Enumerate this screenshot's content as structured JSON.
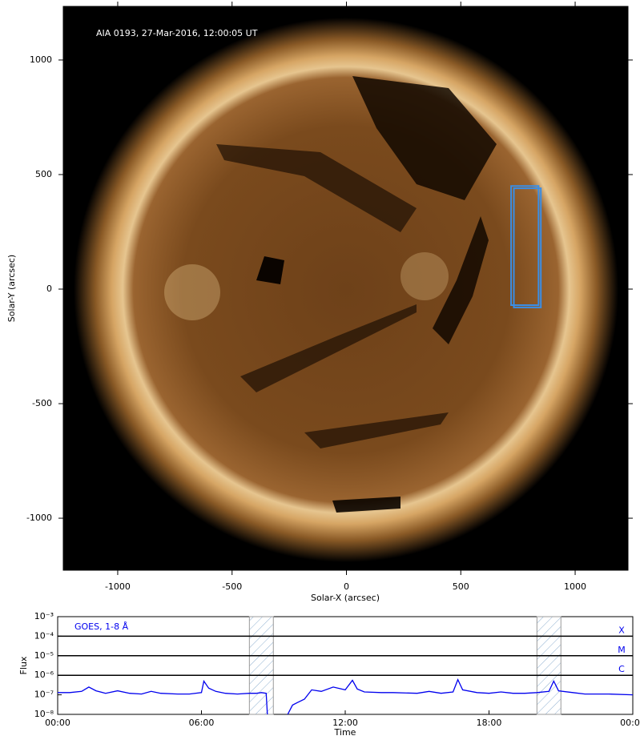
{
  "chart_data": [
    {
      "type": "image",
      "annotation": "AIA 0193, 27-Mar-2016, 12:00:05 UT",
      "x_label": "Solar-X (arcsec)",
      "y_label": "Solar-Y (arcsec)",
      "xlim": [
        -1238,
        1231
      ],
      "ylim": [
        -1227,
        1234
      ],
      "xticks": [
        {
          "value": -1000,
          "label": "-1000"
        },
        {
          "value": -500,
          "label": "-500"
        },
        0,
        500,
        1000
      ],
      "yticks": [
        {
          "value": -1000,
          "label": "-1000"
        },
        {
          "value": -500,
          "label": "-500"
        },
        0,
        500,
        1000
      ],
      "boxes": [
        {
          "x": [
            720,
            840
          ],
          "y": [
            -70,
            450
          ],
          "color": "#3a8ee6"
        },
        {
          "x": [
            732,
            850
          ],
          "y": [
            -80,
            440
          ],
          "color": "#3a8ee6"
        }
      ]
    },
    {
      "type": "line",
      "annotation": "GOES, 1-8 Å",
      "x_label": "Time",
      "y_label": "Flux",
      "log_y": true,
      "xlim": [
        0,
        24
      ],
      "ylim": [
        1e-08,
        0.001
      ],
      "xticks": [
        {
          "value": 0,
          "label": "00:00"
        },
        {
          "value": 6,
          "label": "06:00"
        },
        {
          "value": 12,
          "label": "12:00"
        },
        {
          "value": 18,
          "label": "18:00"
        },
        {
          "value": 24,
          "label": "00:00"
        }
      ],
      "yticks": [
        {
          "value": 1e-08,
          "label": "10⁻⁸"
        },
        {
          "value": 1e-07,
          "label": "10⁻⁷"
        },
        {
          "value": 1e-06,
          "label": "10⁻⁶"
        },
        {
          "value": 1e-05,
          "label": "10⁻⁵"
        },
        {
          "value": 0.0001,
          "label": "10⁻⁴"
        },
        {
          "value": 0.001,
          "label": "10⁻³"
        }
      ],
      "levels": [
        {
          "value": 0.0001,
          "label": "X"
        },
        {
          "value": 1e-05,
          "label": "M"
        },
        {
          "value": 1e-06,
          "label": "C"
        }
      ],
      "regions": [
        [
          8.0,
          9.0
        ],
        [
          20.0,
          21.0
        ]
      ],
      "x": [
        0,
        0.5,
        1,
        1.3,
        1.6,
        2,
        2.5,
        3,
        3.5,
        3.9,
        4.3,
        5,
        5.5,
        6,
        6.1,
        6.3,
        6.6,
        7,
        7.5,
        8,
        8.3,
        8.5,
        8.7,
        8.75,
        9.2,
        9.6,
        9.8,
        10,
        10.3,
        10.6,
        11,
        11.5,
        12,
        12.3,
        12.5,
        12.8,
        13.5,
        14,
        15,
        15.5,
        16,
        16.5,
        16.7,
        16.9,
        17.5,
        18,
        18.5,
        19,
        19.5,
        20,
        20.5,
        20.7,
        20.9,
        21.5,
        22,
        23,
        24
      ],
      "series": [
        {
          "name": "GOES 1-8 Å",
          "color": "#0000ee",
          "values": [
            1.3e-07,
            1.3e-07,
            1.5e-07,
            2.5e-07,
            1.6e-07,
            1.2e-07,
            1.6e-07,
            1.2e-07,
            1.1e-07,
            1.5e-07,
            1.2e-07,
            1.1e-07,
            1.1e-07,
            1.3e-07,
            5e-07,
            2.2e-07,
            1.5e-07,
            1.2e-07,
            1.1e-07,
            1.2e-07,
            1.2e-07,
            1.3e-07,
            1.2e-07,
            1e-08,
            null,
            1e-08,
            3e-08,
            4e-08,
            6e-08,
            1.8e-07,
            1.5e-07,
            2.5e-07,
            1.8e-07,
            5.5e-07,
            2e-07,
            1.4e-07,
            1.3e-07,
            1.3e-07,
            1.2e-07,
            1.5e-07,
            1.2e-07,
            1.4e-07,
            6e-07,
            1.8e-07,
            1.3e-07,
            1.2e-07,
            1.4e-07,
            1.2e-07,
            1.2e-07,
            1.3e-07,
            1.5e-07,
            5e-07,
            1.6e-07,
            1.3e-07,
            1.1e-07,
            1.1e-07,
            1e-07
          ]
        }
      ]
    }
  ]
}
